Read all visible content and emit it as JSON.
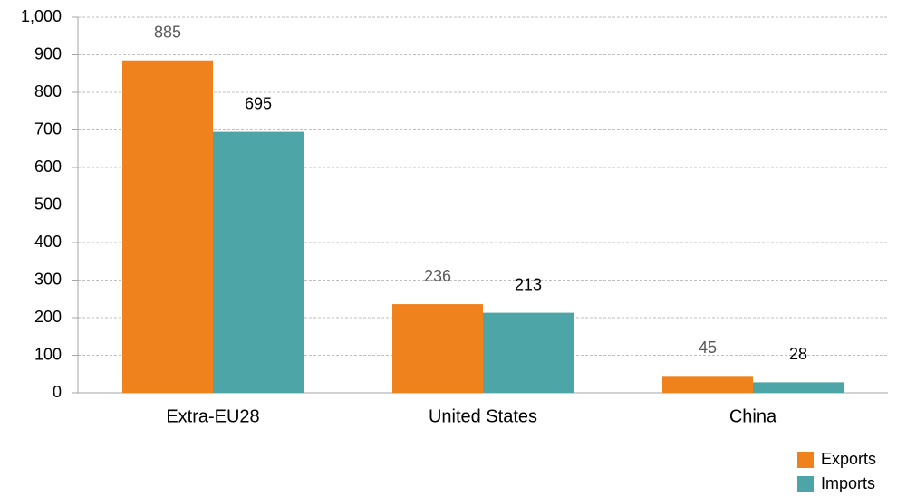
{
  "chart_data": {
    "type": "bar",
    "categories": [
      "Extra-EU28",
      "United States",
      "China"
    ],
    "series": [
      {
        "name": "Exports",
        "color": "#f0821e",
        "values": [
          885,
          236,
          45
        ]
      },
      {
        "name": "Imports",
        "color": "#4ea5a8",
        "values": [
          695,
          213,
          28
        ]
      }
    ],
    "ylim": [
      0,
      1000
    ],
    "yticks": [
      0,
      100,
      200,
      300,
      400,
      500,
      600,
      700,
      800,
      900,
      {
        "value": 1000,
        "label": "1,000"
      }
    ],
    "grid": true,
    "legend": "bottom-right"
  }
}
